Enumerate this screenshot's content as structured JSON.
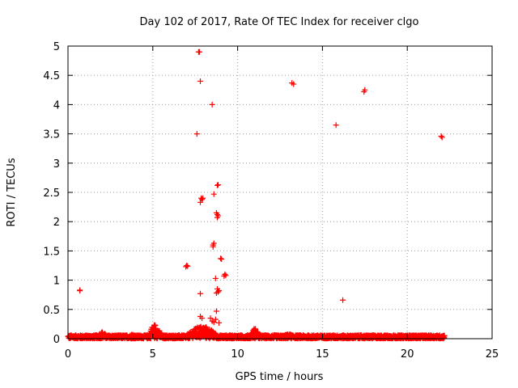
{
  "chart_data": {
    "type": "scatter",
    "title": "Day 102 of 2017, Rate Of TEC Index for receiver clgo",
    "xlabel": "GPS time / hours",
    "ylabel": "ROTI / TECUs",
    "xlim": [
      0,
      25
    ],
    "ylim": [
      0,
      5
    ],
    "xticks": [
      0,
      5,
      10,
      15,
      20,
      25
    ],
    "xtick_labels": [
      "0",
      "5",
      "10",
      "15",
      "20",
      "25"
    ],
    "yticks": [
      0,
      0.5,
      1,
      1.5,
      2,
      2.5,
      3,
      3.5,
      4,
      4.5,
      5
    ],
    "ytick_labels": [
      "0",
      "0.5",
      "1",
      "1.5",
      "2",
      "2.5",
      "3",
      "3.5",
      "4",
      "4.5",
      "5"
    ],
    "grid": true,
    "marker": "plus",
    "color": "#ff0000",
    "points": [
      [
        0.7,
        0.83
      ],
      [
        0.7,
        0.82
      ],
      [
        7.0,
        1.25
      ],
      [
        7.05,
        1.24
      ],
      [
        6.95,
        1.23
      ],
      [
        7.6,
        3.5
      ],
      [
        7.7,
        4.9
      ],
      [
        7.75,
        4.9
      ],
      [
        7.8,
        4.4
      ],
      [
        7.8,
        0.77
      ],
      [
        7.8,
        0.38
      ],
      [
        7.9,
        0.35
      ],
      [
        7.85,
        2.4
      ],
      [
        7.9,
        2.38
      ],
      [
        7.8,
        2.33
      ],
      [
        7.95,
        2.4
      ],
      [
        8.5,
        4.0
      ],
      [
        8.55,
        1.6
      ],
      [
        8.6,
        1.63
      ],
      [
        8.55,
        1.57
      ],
      [
        8.6,
        2.47
      ],
      [
        8.8,
        2.62
      ],
      [
        8.85,
        2.63
      ],
      [
        8.75,
        2.15
      ],
      [
        8.8,
        2.12
      ],
      [
        8.85,
        2.1
      ],
      [
        8.8,
        2.07
      ],
      [
        8.7,
        1.03
      ],
      [
        8.8,
        0.85
      ],
      [
        8.85,
        0.8
      ],
      [
        8.75,
        0.78
      ],
      [
        8.9,
        0.82
      ],
      [
        8.75,
        0.47
      ],
      [
        9.0,
        1.37
      ],
      [
        9.05,
        1.36
      ],
      [
        9.25,
        1.1
      ],
      [
        9.3,
        1.08
      ],
      [
        9.2,
        1.07
      ],
      [
        8.4,
        0.35
      ],
      [
        8.5,
        0.3
      ],
      [
        8.6,
        0.28
      ],
      [
        8.9,
        0.27
      ],
      [
        8.7,
        0.33
      ],
      [
        13.2,
        4.37
      ],
      [
        13.3,
        4.35
      ],
      [
        15.8,
        3.65
      ],
      [
        16.2,
        0.66
      ],
      [
        17.5,
        4.25
      ],
      [
        17.45,
        4.22
      ],
      [
        22.0,
        3.46
      ],
      [
        22.05,
        3.44
      ]
    ],
    "baseline_noise": {
      "x_range": [
        0,
        22.2
      ],
      "typical_max": 0.06,
      "bumps": [
        {
          "x_center": 2.0,
          "x_width": 0.4,
          "peak": 0.12
        },
        {
          "x_center": 3.8,
          "x_width": 0.4,
          "peak": 0.08
        },
        {
          "x_center": 5.1,
          "x_width": 0.5,
          "peak": 0.25
        },
        {
          "x_center": 7.9,
          "x_width": 1.2,
          "peak": 0.22
        },
        {
          "x_center": 11.0,
          "x_width": 0.4,
          "peak": 0.18
        },
        {
          "x_center": 13.0,
          "x_width": 0.6,
          "peak": 0.08
        }
      ]
    }
  }
}
